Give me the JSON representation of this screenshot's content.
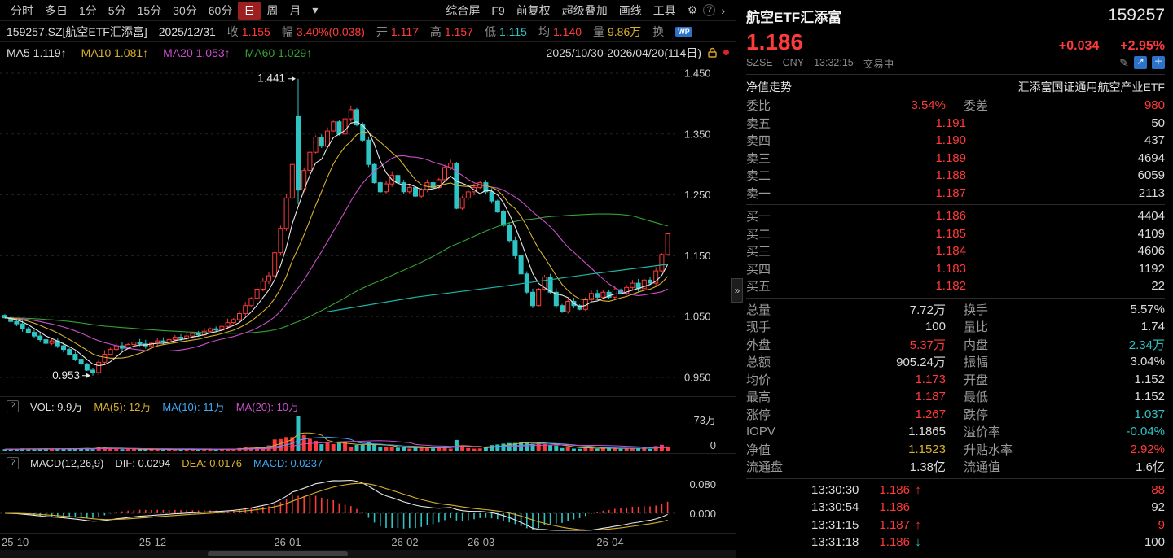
{
  "colors": {
    "up": "#ff3a3a",
    "down": "#2fc4c4",
    "yellow": "#d8b02d",
    "magenta": "#c94fc9",
    "ma_green": "#33a333",
    "blue": "#3fa9f5",
    "nav_cyan": "#1db8a8",
    "white_line": "#e8e8e8"
  },
  "icons": {
    "gear": "⚙",
    "help": "?",
    "chevron": "›",
    "caret": "▾",
    "edit": "✎",
    "popout": "↗",
    "plus": "＋",
    "collapse": "»",
    "wp": "WP"
  },
  "toolbar": {
    "periods": [
      "分时",
      "多日",
      "1分",
      "5分",
      "15分",
      "30分",
      "60分",
      "日",
      "周",
      "月"
    ],
    "active_period": "日",
    "tools": [
      "综合屏",
      "F9",
      "前复权",
      "超级叠加",
      "画线",
      "工具"
    ]
  },
  "info_bar": {
    "symbol": "159257.SZ[航空ETF汇添富]",
    "date": "2025/12/31",
    "close_label": "收",
    "close": "1.155",
    "chg_label": "幅",
    "chg": "3.40%(0.038)",
    "open_label": "开",
    "open": "1.117",
    "high_label": "高",
    "high": "1.157",
    "low_label": "低",
    "low": "1.115",
    "avg_label": "均",
    "avg": "1.140",
    "vol_label": "量",
    "vol": "9.86万",
    "turn_label": "换"
  },
  "ma_bar": {
    "ma5": "MA5 1.119↑",
    "ma10": "MA10 1.081↑",
    "ma20": "MA20 1.053↑",
    "ma60": "MA60 1.029↑",
    "range": "2025/10/30-2026/04/20(114日)"
  },
  "vol_legend": {
    "vol": "VOL: 9.9万",
    "ma5": "MA(5): 12万",
    "ma10": "MA(10): 11万",
    "ma20": "MA(20): 10万"
  },
  "macd_legend": {
    "title": "MACD(12,26,9)",
    "dif": "DIF: 0.0294",
    "dea": "DEA: 0.0176",
    "macd": "MACD: 0.0237"
  },
  "chart_data": {
    "type": "candlestick",
    "symbol": "159257.SZ",
    "title": "航空ETF汇添富 日K",
    "date_range": "2025/10/30-2026/04/20",
    "days": 114,
    "first_open": 1.052,
    "y_ticks": [
      "1.450",
      "1.350",
      "1.250",
      "1.150",
      "1.050",
      "0.950"
    ],
    "ylim": [
      0.935,
      1.465
    ],
    "closes": [
      1.048,
      1.042,
      1.038,
      1.03,
      1.024,
      1.018,
      1.012,
      1.006,
      1.01,
      1.002,
      0.996,
      0.988,
      0.98,
      0.972,
      0.962,
      0.958,
      0.975,
      0.988,
      0.996,
      1.002,
      0.998,
      1.004,
      1.008,
      1.005,
      1.002,
      1.006,
      1.01,
      1.008,
      1.012,
      1.016,
      1.014,
      1.018,
      1.022,
      1.02,
      1.026,
      1.03,
      1.028,
      1.034,
      1.04,
      1.045,
      1.055,
      1.068,
      1.08,
      1.095,
      1.108,
      1.117,
      1.155,
      1.195,
      1.245,
      1.3,
      1.258,
      1.29,
      1.32,
      1.345,
      1.33,
      1.355,
      1.37,
      1.35,
      1.375,
      1.39,
      1.365,
      1.34,
      1.3,
      1.27,
      1.255,
      1.268,
      1.282,
      1.27,
      1.255,
      1.262,
      1.248,
      1.258,
      1.27,
      1.262,
      1.275,
      1.295,
      1.302,
      1.228,
      1.245,
      1.255,
      1.262,
      1.27,
      1.255,
      1.24,
      1.222,
      1.2,
      1.175,
      1.15,
      1.12,
      1.09,
      1.068,
      1.095,
      1.115,
      1.09,
      1.068,
      1.058,
      1.075,
      1.068,
      1.062,
      1.078,
      1.088,
      1.082,
      1.09,
      1.082,
      1.094,
      1.088,
      1.098,
      1.105,
      1.096,
      1.11,
      1.105,
      1.125,
      1.152,
      1.186
    ],
    "special_candles": {
      "15": {
        "low": 0.953
      },
      "46": {
        "open": 1.117,
        "high": 1.157,
        "low": 1.115,
        "close": 1.155
      },
      "50": {
        "open": 1.38,
        "high": 1.441,
        "low": 1.235,
        "close": 1.258
      },
      "113": {
        "open": 1.152,
        "high": 1.187,
        "low": 1.152,
        "close": 1.186
      }
    },
    "annotations": [
      {
        "text": "1.441",
        "index": 50,
        "price": 1.441
      },
      {
        "text": "0.953",
        "index": 15,
        "price": 0.953
      }
    ],
    "x_labels": [
      {
        "text": "25-10",
        "index": 0
      },
      {
        "text": "25-12",
        "index": 24
      },
      {
        "text": "26-01",
        "index": 47
      },
      {
        "text": "26-02",
        "index": 67
      },
      {
        "text": "26-03",
        "index": 80
      },
      {
        "text": "26-04",
        "index": 102
      }
    ],
    "nav_line": [
      [
        55,
        1.058
      ],
      [
        70,
        1.082
      ],
      [
        85,
        1.1
      ],
      [
        100,
        1.12
      ],
      [
        113,
        1.136
      ]
    ],
    "ma_periods": [
      5,
      10,
      20,
      60
    ],
    "volume": {
      "current_wan": 9.9,
      "scale_top": "73万",
      "scale_zero": "0",
      "max_wan": 73,
      "overrides": {
        "49": 30,
        "50": 73,
        "51": 34,
        "52": 26,
        "53": 22,
        "77": 24,
        "112": 14,
        "113": 9.9
      }
    },
    "macd": {
      "params": [
        12,
        26,
        9
      ],
      "dif": 0.0294,
      "dea": 0.0176,
      "macd": 0.0237,
      "scale_top": "0.080",
      "scale_zero": "0.000"
    }
  },
  "quote": {
    "name": "航空ETF汇添富",
    "code": "159257",
    "price": "1.186",
    "change": "+0.034",
    "change_pct": "+2.95%",
    "exchange": "SZSE",
    "currency": "CNY",
    "time": "13:32:15",
    "status": "交易中",
    "nav_tab": "净值走势",
    "full_name": "汇添富国证通用航空产业ETF",
    "weibi_label": "委比",
    "weibi": "3.54%",
    "weicha_label": "委差",
    "weicha": "980",
    "asks": [
      {
        "label": "卖五",
        "price": "1.191",
        "vol": "50"
      },
      {
        "label": "卖四",
        "price": "1.190",
        "vol": "437"
      },
      {
        "label": "卖三",
        "price": "1.189",
        "vol": "4694"
      },
      {
        "label": "卖二",
        "price": "1.188",
        "vol": "6059"
      },
      {
        "label": "卖一",
        "price": "1.187",
        "vol": "2113"
      }
    ],
    "bids": [
      {
        "label": "买一",
        "price": "1.186",
        "vol": "4404"
      },
      {
        "label": "买二",
        "price": "1.185",
        "vol": "4109"
      },
      {
        "label": "买三",
        "price": "1.184",
        "vol": "4606"
      },
      {
        "label": "买四",
        "price": "1.183",
        "vol": "1192"
      },
      {
        "label": "买五",
        "price": "1.182",
        "vol": "22"
      }
    ],
    "stats": [
      {
        "l1": "总量",
        "v1": "7.72万",
        "l2": "换手",
        "v2": "5.57%"
      },
      {
        "l1": "现手",
        "v1": "100",
        "l2": "量比",
        "v2": "1.74"
      },
      {
        "l1": "外盘",
        "v1": "5.37万",
        "l2": "内盘",
        "v2": "2.34万"
      },
      {
        "l1": "总额",
        "v1": "905.24万",
        "l2": "振幅",
        "v2": "3.04%"
      },
      {
        "l1": "均价",
        "v1": "1.173",
        "l2": "开盘",
        "v2": "1.152"
      },
      {
        "l1": "最高",
        "v1": "1.187",
        "l2": "最低",
        "v2": "1.152"
      },
      {
        "l1": "涨停",
        "v1": "1.267",
        "l2": "跌停",
        "v2": "1.037"
      },
      {
        "l1": "IOPV",
        "v1": "1.1865",
        "l2": "溢价率",
        "v2": "-0.04%"
      },
      {
        "l1": "净值",
        "v1": "1.1523",
        "l2": "升贴水率",
        "v2": "2.92%"
      },
      {
        "l1": "流通盘",
        "v1": "1.38亿",
        "l2": "流通值",
        "v2": "1.6亿"
      }
    ],
    "ticks": [
      {
        "time": "13:30:30",
        "price": "1.186",
        "dir": "↑",
        "count": "88"
      },
      {
        "time": "13:30:54",
        "price": "1.186",
        "dir": "",
        "count": "92"
      },
      {
        "time": "13:31:15",
        "price": "1.187",
        "dir": "↑",
        "count": "9"
      },
      {
        "time": "13:31:18",
        "price": "1.186",
        "dir": "↓",
        "count": "100"
      }
    ]
  }
}
